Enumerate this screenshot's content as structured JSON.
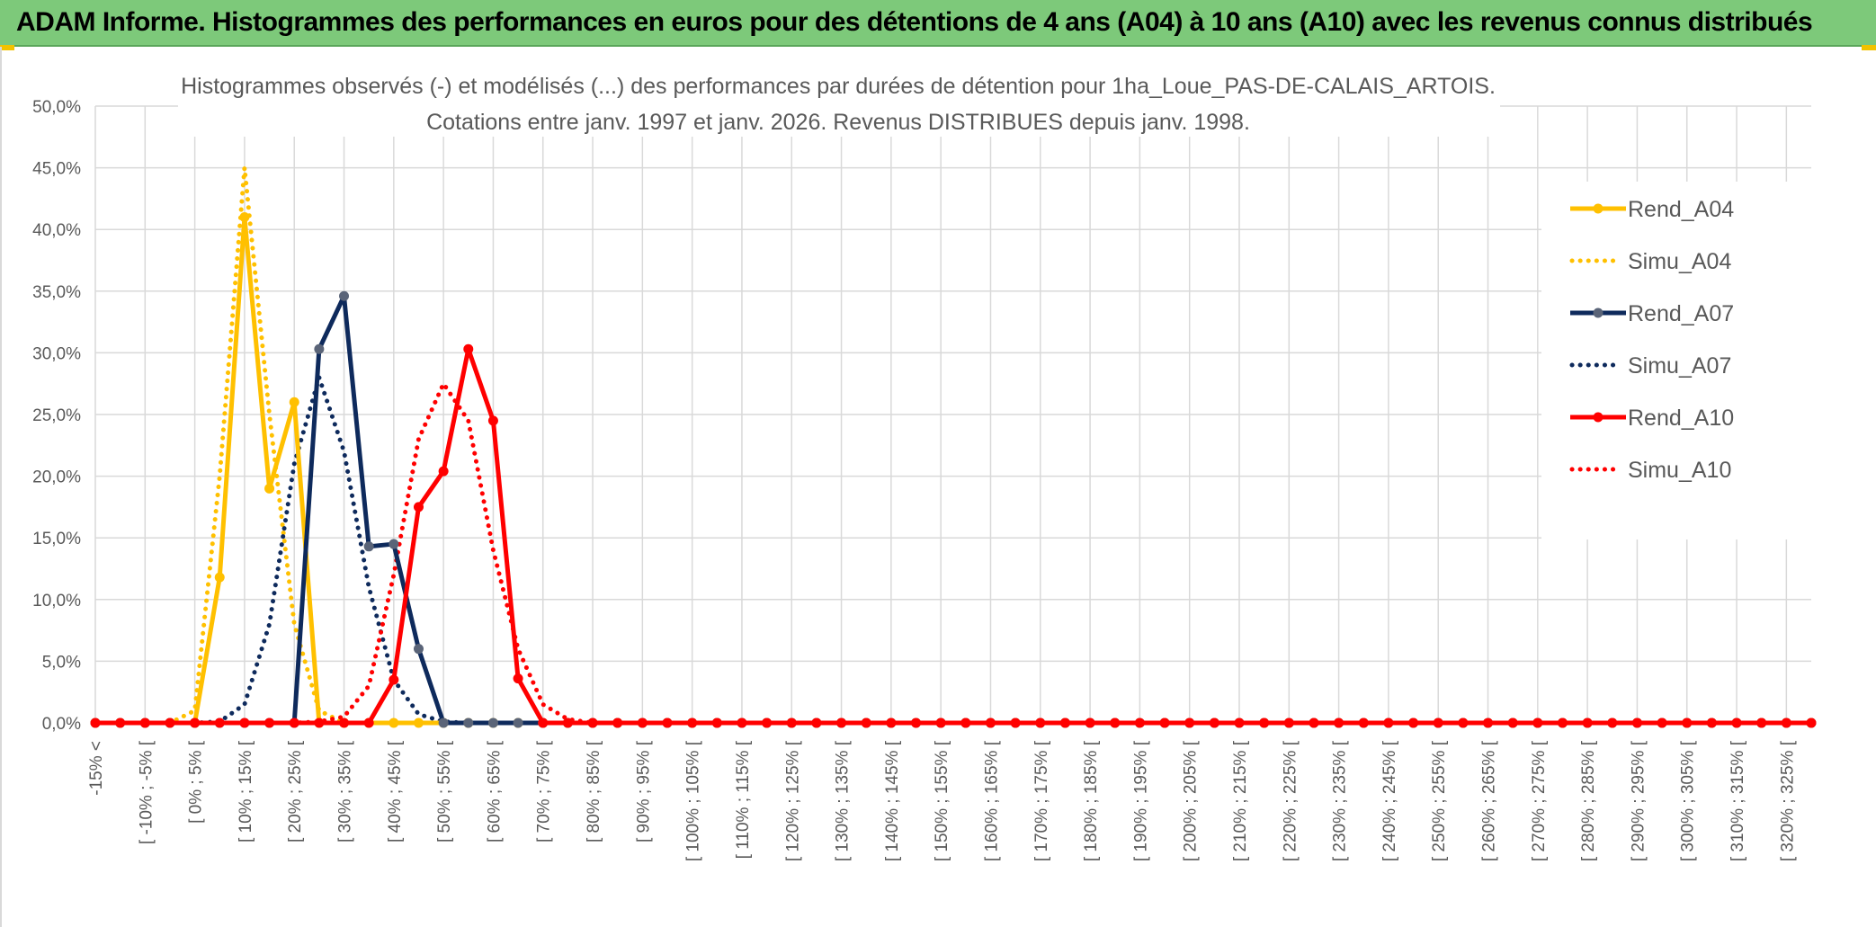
{
  "banner": {
    "title": "ADAM Informe. Histogrammes des performances en euros pour des détentions de 4 ans (A04) à 10 ans (A10) avec les revenus connus distribués"
  },
  "colors": {
    "banner_bg": "#7dc97a",
    "A04": "#ffc000",
    "A07": "#0e2a5c",
    "A07_marker": "#5a6478",
    "A10": "#ff0000",
    "grid": "#d9d9d9"
  },
  "chart_data": {
    "type": "line",
    "title_lines": [
      "Histogrammes observés (-) et modélisés (...) des performances par durées de détention pour 1ha_Loue_PAS-DE-CALAIS_ARTOIS.",
      "Cotations entre janv. 1997 et janv. 2026. Revenus DISTRIBUES depuis janv. 1998."
    ],
    "xlabel": "",
    "ylabel": "",
    "ylim": [
      0,
      50
    ],
    "y_ticks": [
      "0,0%",
      "5,0%",
      "10,0%",
      "15,0%",
      "20,0%",
      "25,0%",
      "30,0%",
      "35,0%",
      "40,0%",
      "45,0%",
      "50,0%"
    ],
    "grid": true,
    "legend_position": "right",
    "categories": [
      "-15% <",
      "[ -15% ; -10% [",
      "[ -10% ; -5% [",
      "[ -5% ; 0% [",
      "[ 0% ; 5% [",
      "[ 5% ; 10% [",
      "[ 10% ; 15% [",
      "[ 15% ; 20% [",
      "[ 20% ; 25% [",
      "[ 25% ; 30% [",
      "[ 30% ; 35% [",
      "[ 35% ; 40% [",
      "[ 40% ; 45% [",
      "[ 45% ; 50% [",
      "[ 50% ; 55% [",
      "[ 55% ; 60% [",
      "[ 60% ; 65% [",
      "[ 65% ; 70% [",
      "[ 70% ; 75% [",
      "[ 75% ; 80% [",
      "[ 80% ; 85% [",
      "[ 85% ; 90% [",
      "[ 90% ; 95% [",
      "[ 95% ; 100% [",
      "[ 100% ; 105% [",
      "[ 105% ; 110% [",
      "[ 110% ; 115% [",
      "[ 115% ; 120% [",
      "[ 120% ; 125% [",
      "[ 125% ; 130% [",
      "[ 130% ; 135% [",
      "[ 135% ; 140% [",
      "[ 140% ; 145% [",
      "[ 145% ; 150% [",
      "[ 150% ; 155% [",
      "[ 155% ; 160% [",
      "[ 160% ; 165% [",
      "[ 165% ; 170% [",
      "[ 170% ; 175% [",
      "[ 175% ; 180% [",
      "[ 180% ; 185% [",
      "[ 185% ; 190% [",
      "[ 190% ; 195% [",
      "[ 195% ; 200% [",
      "[ 200% ; 205% [",
      "[ 205% ; 210% [",
      "[ 210% ; 215% [",
      "[ 215% ; 220% [",
      "[ 220% ; 225% [",
      "[ 225% ; 230% [",
      "[ 230% ; 235% [",
      "[ 235% ; 240% [",
      "[ 240% ; 245% [",
      "[ 245% ; 250% [",
      "[ 250% ; 255% [",
      "[ 255% ; 260% [",
      "[ 260% ; 265% [",
      "[ 265% ; 270% [",
      "[ 270% ; 275% [",
      "[ 275% ; 280% [",
      "[ 280% ; 285% [",
      "[ 285% ; 290% [",
      "[ 290% ; 295% [",
      "[ 295% ; 300% [",
      "[ 300% ; 305% [",
      "[ 305% ; 310% [",
      "[ 310% ; 315% [",
      "[ 315% ; 320% [",
      "[ 320% ; 325% [",
      "[ 325% ; 330% ["
    ],
    "visible_tick_labels": [
      "-15% <",
      "[ -10% ; -5% [",
      "[ 0% ; 5% [",
      "[ 10% ; 15% [",
      "[ 20% ; 25% [",
      "[ 30% ; 35% [",
      "[ 40% ; 45% [",
      "[ 50% ; 55% [",
      "[ 60% ; 65% [",
      "[ 70% ; 75% [",
      "[ 80% ; 85% [",
      "[ 90% ; 95% [",
      "[ 100% ; 105% [",
      "[ 110% ; 115% [",
      "[ 120% ; 125% [",
      "[ 130% ; 135% [",
      "[ 140% ; 145% [",
      "[ 150% ; 155% [",
      "[ 160% ; 165% [",
      "[ 170% ; 175% [",
      "[ 180% ; 185% [",
      "[ 190% ; 195% [",
      "[ 200% ; 205% [",
      "[ 210% ; 215% [",
      "[ 220% ; 225% [",
      "[ 230% ; 235% [",
      "[ 240% ; 245% [",
      "[ 250% ; 255% [",
      "[ 260% ; 265% [",
      "[ 270% ; 275% [",
      "[ 280% ; 285% [",
      "[ 290% ; 295% [",
      "[ 300% ; 305% [",
      "[ 310% ; 315% [",
      "[ 320% ; 325% ["
    ],
    "series": [
      {
        "name": "Rend_A04",
        "style": "solid",
        "color_key": "A04",
        "values": [
          0,
          0,
          0,
          0,
          0,
          11.8,
          41.0,
          19.0,
          26.0,
          0,
          0,
          0,
          0,
          0,
          0,
          0,
          0,
          0,
          0,
          0,
          0,
          0,
          0,
          0,
          0,
          0,
          0,
          0,
          0,
          0,
          0,
          0,
          0,
          0,
          0,
          0,
          0,
          0,
          0,
          0,
          0,
          0,
          0,
          0,
          0,
          0,
          0,
          0,
          0,
          0,
          0,
          0,
          0,
          0,
          0,
          0,
          0,
          0,
          0,
          0,
          0,
          0,
          0,
          0,
          0,
          0,
          0,
          0,
          0,
          0
        ]
      },
      {
        "name": "Simu_A04",
        "style": "dotted",
        "color_key": "A04",
        "values": [
          0,
          0,
          0,
          0,
          1.0,
          20.0,
          45.0,
          25.0,
          8.0,
          1.0,
          0,
          0,
          0,
          0,
          0,
          0,
          0,
          0,
          0,
          0,
          0,
          0,
          0,
          0,
          0,
          0,
          0,
          0,
          0,
          0,
          0,
          0,
          0,
          0,
          0,
          0,
          0,
          0,
          0,
          0,
          0,
          0,
          0,
          0,
          0,
          0,
          0,
          0,
          0,
          0,
          0,
          0,
          0,
          0,
          0,
          0,
          0,
          0,
          0,
          0,
          0,
          0,
          0,
          0,
          0,
          0,
          0,
          0,
          0,
          0
        ]
      },
      {
        "name": "Rend_A07",
        "style": "solid",
        "color_key": "A07",
        "values": [
          0,
          0,
          0,
          0,
          0,
          0,
          0,
          0,
          0,
          30.3,
          34.6,
          14.3,
          14.5,
          6.0,
          0,
          0,
          0,
          0,
          0,
          0,
          0,
          0,
          0,
          0,
          0,
          0,
          0,
          0,
          0,
          0,
          0,
          0,
          0,
          0,
          0,
          0,
          0,
          0,
          0,
          0,
          0,
          0,
          0,
          0,
          0,
          0,
          0,
          0,
          0,
          0,
          0,
          0,
          0,
          0,
          0,
          0,
          0,
          0,
          0,
          0,
          0,
          0,
          0,
          0,
          0,
          0,
          0,
          0,
          0,
          0
        ]
      },
      {
        "name": "Simu_A07",
        "style": "dotted",
        "color_key": "A07",
        "values": [
          0,
          0,
          0,
          0,
          0,
          0.1,
          1.5,
          8.0,
          21.0,
          28.0,
          22.0,
          11.0,
          3.5,
          0.7,
          0.1,
          0,
          0,
          0,
          0,
          0,
          0,
          0,
          0,
          0,
          0,
          0,
          0,
          0,
          0,
          0,
          0,
          0,
          0,
          0,
          0,
          0,
          0,
          0,
          0,
          0,
          0,
          0,
          0,
          0,
          0,
          0,
          0,
          0,
          0,
          0,
          0,
          0,
          0,
          0,
          0,
          0,
          0,
          0,
          0,
          0,
          0,
          0,
          0,
          0,
          0,
          0,
          0,
          0,
          0,
          0
        ]
      },
      {
        "name": "Rend_A10",
        "style": "solid",
        "color_key": "A10",
        "values": [
          0,
          0,
          0,
          0,
          0,
          0,
          0,
          0,
          0,
          0,
          0,
          0,
          3.5,
          17.5,
          20.4,
          30.3,
          24.5,
          3.6,
          0,
          0,
          0,
          0,
          0,
          0,
          0,
          0,
          0,
          0,
          0,
          0,
          0,
          0,
          0,
          0,
          0,
          0,
          0,
          0,
          0,
          0,
          0,
          0,
          0,
          0,
          0,
          0,
          0,
          0,
          0,
          0,
          0,
          0,
          0,
          0,
          0,
          0,
          0,
          0,
          0,
          0,
          0,
          0,
          0,
          0,
          0,
          0,
          0,
          0,
          0,
          0
        ]
      },
      {
        "name": "Simu_A10",
        "style": "dotted",
        "color_key": "A10",
        "values": [
          0,
          0,
          0,
          0,
          0,
          0,
          0,
          0,
          0,
          0.1,
          0.5,
          3.0,
          12.0,
          23.0,
          27.5,
          24.5,
          14.0,
          6.0,
          1.5,
          0.3,
          0,
          0,
          0,
          0,
          0,
          0,
          0,
          0,
          0,
          0,
          0,
          0,
          0,
          0,
          0,
          0,
          0,
          0,
          0,
          0,
          0,
          0,
          0,
          0,
          0,
          0,
          0,
          0,
          0,
          0,
          0,
          0,
          0,
          0,
          0,
          0,
          0,
          0,
          0,
          0,
          0,
          0,
          0,
          0,
          0,
          0,
          0,
          0,
          0,
          0
        ]
      }
    ]
  }
}
